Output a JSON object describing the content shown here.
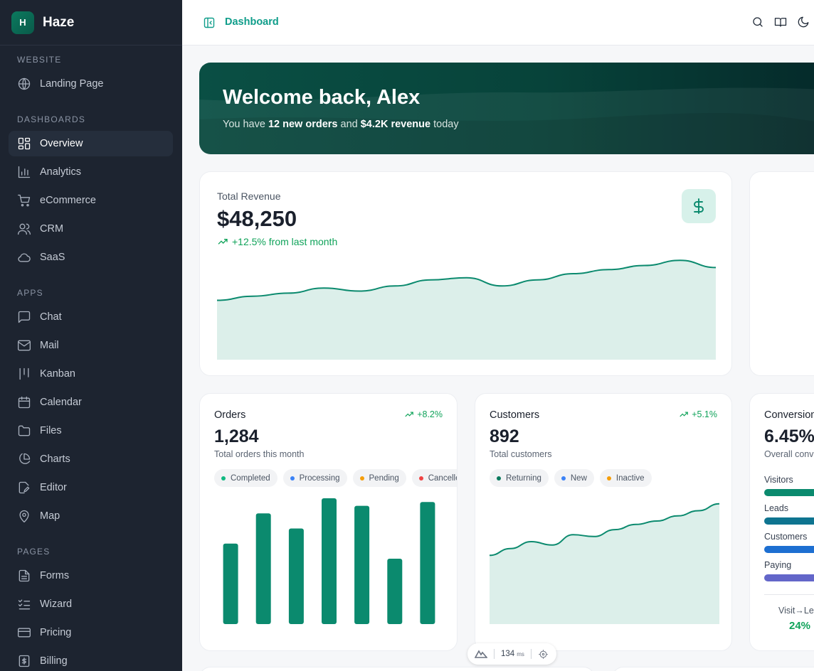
{
  "app": {
    "logo_letter": "H",
    "name": "Haze"
  },
  "sidebar": {
    "sections": [
      {
        "title": "WEBSITE",
        "items": [
          {
            "label": "Landing Page",
            "icon": "globe-icon"
          }
        ]
      },
      {
        "title": "DASHBOARDS",
        "items": [
          {
            "label": "Overview",
            "icon": "layout-dashboard-icon",
            "active": true
          },
          {
            "label": "Analytics",
            "icon": "bar-chart-icon"
          },
          {
            "label": "eCommerce",
            "icon": "shopping-cart-icon"
          },
          {
            "label": "CRM",
            "icon": "users-icon"
          },
          {
            "label": "SaaS",
            "icon": "cloud-icon"
          }
        ]
      },
      {
        "title": "APPS",
        "items": [
          {
            "label": "Chat",
            "icon": "message-square-icon"
          },
          {
            "label": "Mail",
            "icon": "mail-icon"
          },
          {
            "label": "Kanban",
            "icon": "kanban-icon"
          },
          {
            "label": "Calendar",
            "icon": "calendar-icon"
          },
          {
            "label": "Files",
            "icon": "folder-icon"
          },
          {
            "label": "Charts",
            "icon": "pie-chart-icon"
          },
          {
            "label": "Editor",
            "icon": "edit-icon"
          },
          {
            "label": "Map",
            "icon": "map-pin-icon"
          }
        ]
      },
      {
        "title": "PAGES",
        "items": [
          {
            "label": "Forms",
            "icon": "file-text-icon"
          },
          {
            "label": "Wizard",
            "icon": "list-checks-icon"
          },
          {
            "label": "Pricing",
            "icon": "credit-card-icon"
          },
          {
            "label": "Billing",
            "icon": "receipt-icon"
          }
        ]
      }
    ]
  },
  "header": {
    "title": "Dashboard"
  },
  "welcome": {
    "title": "Welcome back, Alex",
    "sub_prefix": "You have ",
    "orders_text": "12 new orders",
    "sub_mid": " and ",
    "revenue_text": "$4.2K revenue",
    "sub_suffix": " today"
  },
  "revenue_card": {
    "label": "Total Revenue",
    "value": "$48,250",
    "change": "+12.5% from last month",
    "chart_data": {
      "type": "area",
      "values": [
        58,
        62,
        65,
        70,
        67,
        72,
        78,
        80,
        72,
        78,
        84,
        88,
        92,
        97,
        90
      ]
    }
  },
  "orders_card": {
    "title": "Orders",
    "change": "+8.2%",
    "value": "1,284",
    "subtitle": "Total orders this month",
    "chips": [
      {
        "label": "Completed",
        "color": "#10b981"
      },
      {
        "label": "Processing",
        "color": "#3b82f6"
      },
      {
        "label": "Pending",
        "color": "#f59e0b"
      },
      {
        "label": "Cancelled",
        "color": "#ef4444"
      }
    ],
    "chart_data": {
      "type": "bar",
      "values": [
        64,
        88,
        76,
        100,
        94,
        52,
        97
      ]
    }
  },
  "customers_card": {
    "title": "Customers",
    "change": "+5.1%",
    "value": "892",
    "subtitle": "Total customers",
    "chips": [
      {
        "label": "Returning",
        "color": "#0b7a5e"
      },
      {
        "label": "New",
        "color": "#3b82f6"
      },
      {
        "label": "Inactive",
        "color": "#f59e0b"
      }
    ],
    "chart_data": {
      "type": "area",
      "values": [
        40,
        44,
        48,
        46,
        52,
        51,
        55,
        58,
        60,
        63,
        66,
        70
      ]
    }
  },
  "conversion_card": {
    "title": "Conversion",
    "value": "6.45%",
    "subtitle": "Overall conv",
    "funnel": [
      {
        "label": "Visitors",
        "color": "#0b8a6e"
      },
      {
        "label": "Leads",
        "color": "#0e7490"
      },
      {
        "label": "Customers",
        "color": "#1d6fd1"
      },
      {
        "label": "Paying",
        "color": "#6366c9"
      }
    ],
    "footer_label": "Visit→Lea",
    "footer_value": "24%"
  },
  "perf": {
    "ms_value": "134",
    "ms_unit": "ms"
  }
}
